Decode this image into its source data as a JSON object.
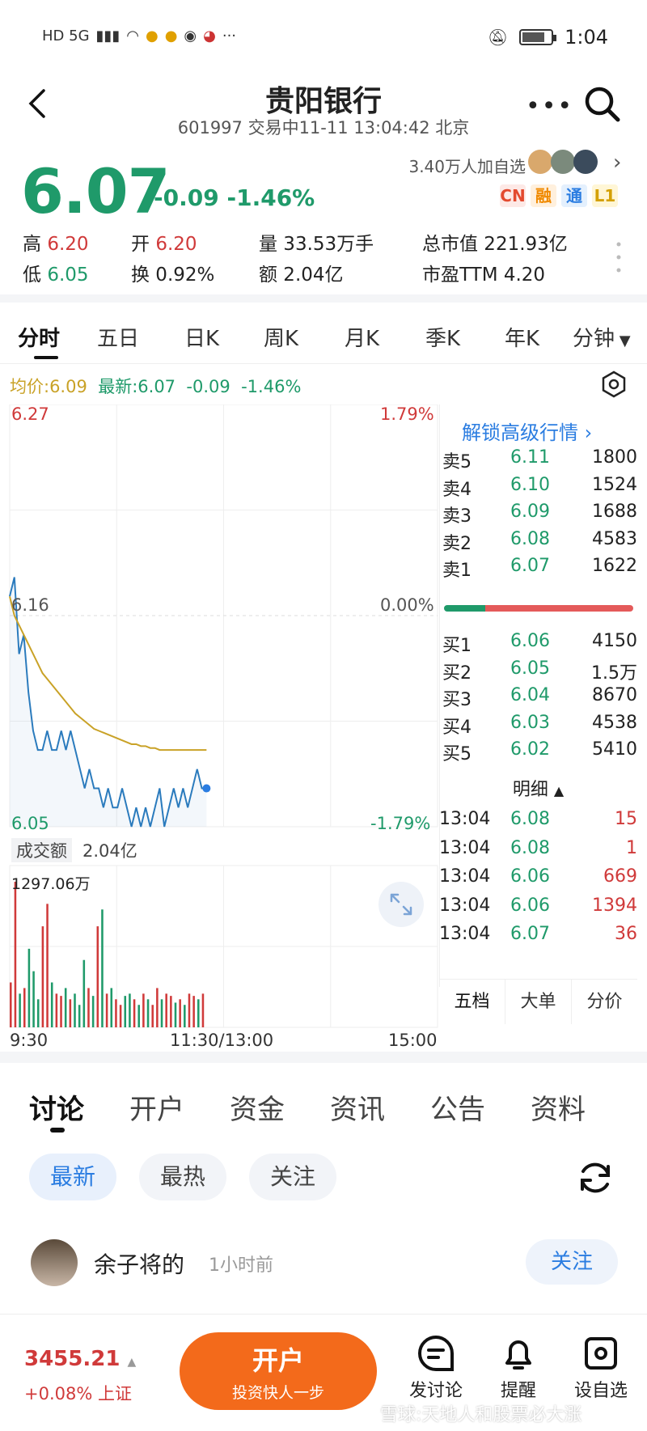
{
  "status_bar": {
    "left": "HD 5G",
    "time": "1:04"
  },
  "header": {
    "title": "贵阳银行",
    "subtitle": "601997 交易中11-11 13:04:42 北京"
  },
  "quote": {
    "price": "6.07",
    "change": "-0.09",
    "change_pct": "-1.46%",
    "followers": "3.40万人加自选",
    "badges": [
      "CN",
      "融",
      "通",
      "L1"
    ],
    "high_label": "高",
    "high": "6.20",
    "open_label": "开",
    "open": "6.20",
    "volume": "量 33.53万手",
    "market_cap": "总市值 221.93亿",
    "low_label": "低",
    "low": "6.05",
    "turnover": "换 0.92%",
    "amount": "额 2.04亿",
    "pe": "市盈TTM 4.20"
  },
  "tabs": [
    "分时",
    "五日",
    "日K",
    "周K",
    "月K",
    "季K",
    "年K",
    "分钟"
  ],
  "avg_line": {
    "avg": "均价:6.09",
    "latest": "最新:6.07",
    "chg": "-0.09",
    "pct": "-1.46%"
  },
  "chart": {
    "y_top": "6.27",
    "y_mid": "6.16",
    "y_bot": "6.05",
    "pct_top": "1.79%",
    "pct_mid": "0.00%",
    "pct_bot": "-1.79%",
    "vol_label": "成交额",
    "vol_value": "2.04亿",
    "vol_max": "1297.06万",
    "x_labels": [
      "9:30",
      "11:30/13:00",
      "15:00"
    ],
    "colors": {
      "price": "#2b7bbd",
      "avg": "#c9a227",
      "up": "#d03a3a",
      "down": "#1f9a6a"
    }
  },
  "chart_data": {
    "type": "line",
    "ylim": [
      6.05,
      6.27
    ],
    "series": [
      {
        "values": [
          6.17,
          6.18,
          6.14,
          6.15,
          6.12,
          6.1,
          6.09,
          6.09,
          6.1,
          6.09,
          6.09,
          6.1,
          6.09,
          6.1,
          6.09,
          6.08,
          6.07,
          6.08,
          6.07,
          6.07,
          6.06,
          6.07,
          6.06,
          6.06,
          6.07,
          6.06,
          6.05,
          6.06,
          6.05,
          6.06,
          6.05,
          6.06,
          6.07,
          6.05,
          6.06,
          6.07,
          6.06,
          6.07,
          6.06,
          6.07,
          6.08,
          6.07,
          6.07
        ]
      },
      {
        "values": [
          6.17,
          6.16,
          6.155,
          6.15,
          6.145,
          6.14,
          6.135,
          6.13,
          6.127,
          6.124,
          6.121,
          6.118,
          6.115,
          6.112,
          6.109,
          6.107,
          6.105,
          6.103,
          6.101,
          6.1,
          6.099,
          6.098,
          6.097,
          6.096,
          6.095,
          6.094,
          6.093,
          6.093,
          6.092,
          6.092,
          6.091,
          6.091,
          6.09,
          6.09,
          6.09,
          6.09,
          6.09,
          6.09,
          6.09,
          6.09,
          6.09,
          6.09,
          6.09
        ]
      }
    ],
    "volume": [
      400,
      1297,
      300,
      350,
      700,
      500,
      250,
      900,
      1100,
      400,
      300,
      280,
      350,
      250,
      300,
      200,
      600,
      350,
      280,
      900,
      1050,
      300,
      350,
      250,
      200,
      280,
      300,
      250,
      200,
      300,
      250,
      200,
      350,
      250,
      300,
      280,
      220,
      250,
      200,
      300,
      280,
      250,
      300
    ]
  },
  "orderbook": {
    "unlock": "解锁高级行情",
    "asks": [
      {
        "label": "卖5",
        "price": "6.11",
        "vol": "1800"
      },
      {
        "label": "卖4",
        "price": "6.10",
        "vol": "1524"
      },
      {
        "label": "卖3",
        "price": "6.09",
        "vol": "1688"
      },
      {
        "label": "卖2",
        "price": "6.08",
        "vol": "4583"
      },
      {
        "label": "卖1",
        "price": "6.07",
        "vol": "1622"
      }
    ],
    "bids": [
      {
        "label": "买1",
        "price": "6.06",
        "vol": "4150"
      },
      {
        "label": "买2",
        "price": "6.05",
        "vol": "1.5万"
      },
      {
        "label": "买3",
        "price": "6.04",
        "vol": "8670"
      },
      {
        "label": "买4",
        "price": "6.03",
        "vol": "4538"
      },
      {
        "label": "买5",
        "price": "6.02",
        "vol": "5410"
      }
    ],
    "detail_title": "明细",
    "trades": [
      {
        "time": "13:04",
        "price": "6.08",
        "vol": "15"
      },
      {
        "time": "13:04",
        "price": "6.08",
        "vol": "1"
      },
      {
        "time": "13:04",
        "price": "6.06",
        "vol": "669"
      },
      {
        "time": "13:04",
        "price": "6.06",
        "vol": "1394"
      },
      {
        "time": "13:04",
        "price": "6.07",
        "vol": "36"
      }
    ],
    "bottom_tabs": [
      "五档",
      "大单",
      "分价"
    ]
  },
  "news_tabs": [
    "讨论",
    "开户",
    "资金",
    "资讯",
    "公告",
    "资料"
  ],
  "chips": [
    "最新",
    "最热",
    "关注"
  ],
  "post": {
    "name": "余子将的",
    "time": "1小时前",
    "follow": "关注"
  },
  "bottom": {
    "index_value": "3455.21",
    "index_change": "+0.08% 上证",
    "open_main": "开户",
    "open_sub": "投资快人一步",
    "nav": [
      "发讨论",
      "提醒",
      "设自选"
    ],
    "watermark": "雪球:天地人和股票必大涨"
  }
}
